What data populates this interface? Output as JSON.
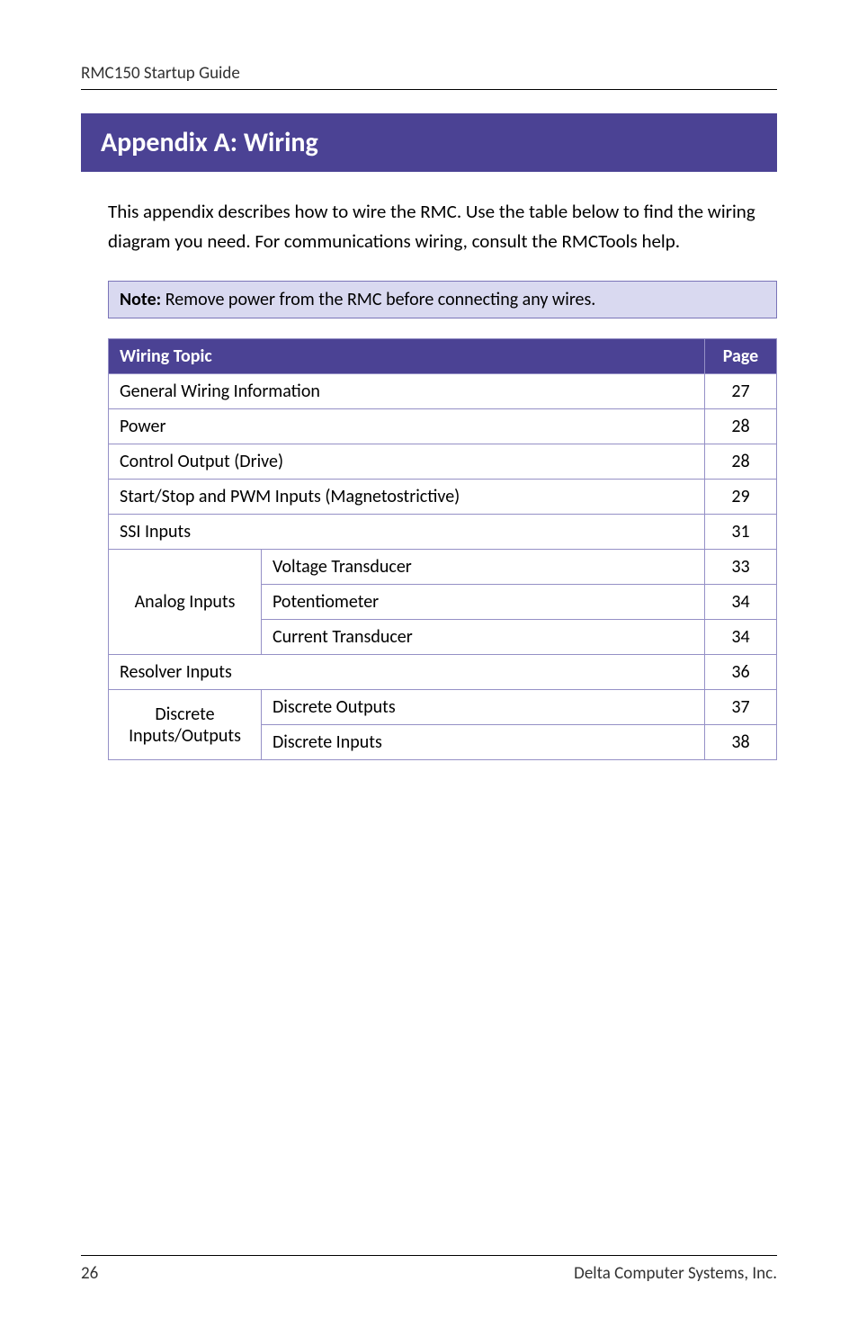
{
  "header": {
    "running_title": "RMC150 Startup Guide"
  },
  "title": "Appendix A: Wiring",
  "intro": "This appendix describes how to wire the RMC. Use the table below to find the wiring diagram you need. For communications wiring, consult the RMCTools help.",
  "note": {
    "label": "Note:",
    "text": " Remove power from the RMC before connecting any wires."
  },
  "table": {
    "header_topic": "Wiring Topic",
    "header_page": "Page",
    "rows": {
      "general": {
        "label": "General Wiring Information",
        "page": "27"
      },
      "power": {
        "label": "Power",
        "page": "28"
      },
      "control": {
        "label": "Control Output (Drive)",
        "page": "28"
      },
      "startstop": {
        "label": "Start/Stop and PWM Inputs (Magnetostrictive)",
        "page": "29"
      },
      "ssi": {
        "label": "SSI Inputs",
        "page": "31"
      },
      "analog_group_label": "Analog Inputs",
      "analog": {
        "voltage": {
          "label": "Voltage Transducer",
          "page": "33"
        },
        "pot": {
          "label": "Potentiometer",
          "page": "34"
        },
        "current": {
          "label": "Current Transducer",
          "page": "34"
        }
      },
      "resolver": {
        "label": "Resolver Inputs",
        "page": "36"
      },
      "discrete_group_label": "Discrete Inputs/Outputs",
      "discrete": {
        "outputs": {
          "label": "Discrete Outputs",
          "page": "37"
        },
        "inputs": {
          "label": "Discrete Inputs",
          "page": "38"
        }
      }
    }
  },
  "footer": {
    "page_number": "26",
    "company": "Delta Computer Systems, Inc."
  },
  "colors": {
    "brand_purple": "#4b4294",
    "table_border": "#9590c6",
    "note_bg": "#d9d9f0",
    "note_border": "#7a74b8",
    "page_bg": "#ffffff",
    "text": "#000000"
  },
  "typography": {
    "body_fontsize_pt": 15,
    "title_fontsize_pt": 22,
    "title_fontweight": "bold",
    "font_family": "Calibri"
  }
}
